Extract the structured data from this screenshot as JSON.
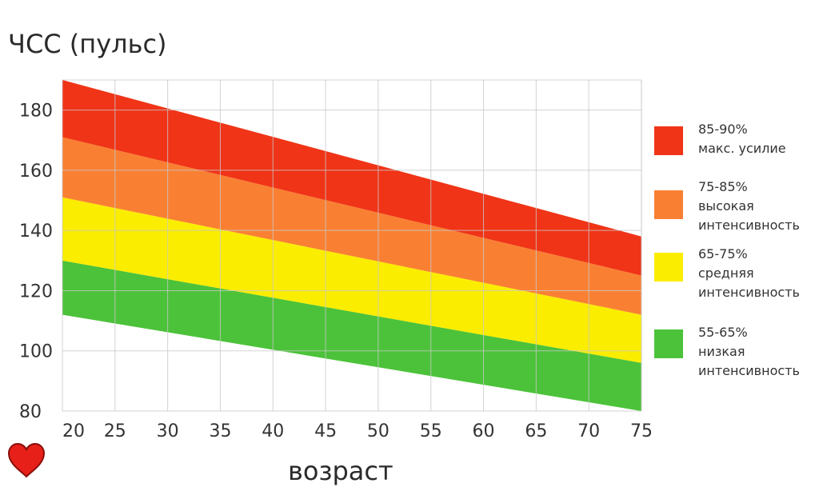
{
  "chart_data": {
    "type": "area",
    "title": "",
    "ylabel": "ЧСС (пульс)",
    "xlabel": "возраст",
    "x_ticks": [
      20,
      25,
      30,
      35,
      40,
      45,
      50,
      55,
      60,
      65,
      70,
      75
    ],
    "y_ticks": [
      80,
      100,
      120,
      140,
      160,
      180
    ],
    "xlim": [
      20,
      75
    ],
    "ylim": [
      80,
      190
    ],
    "grid": true,
    "legend_position": "right",
    "zone_boundaries": [
      {
        "at_x20": 112,
        "at_x75": 80
      },
      {
        "at_x20": 130,
        "at_x75": 96
      },
      {
        "at_x20": 151,
        "at_x75": 112
      },
      {
        "at_x20": 171,
        "at_x75": 125
      },
      {
        "at_x20": 190,
        "at_x75": 138
      }
    ],
    "series": [
      {
        "name": "55-65% низкая интенсивность",
        "lower": 0,
        "upper": 1,
        "color": "#4cc23a"
      },
      {
        "name": "65-75% средняя интенсивность",
        "lower": 1,
        "upper": 2,
        "color": "#fbed00"
      },
      {
        "name": "75-85% высокая интенсивность",
        "lower": 2,
        "upper": 3,
        "color": "#f98033"
      },
      {
        "name": "85-90% макс. усилие",
        "lower": 3,
        "upper": 4,
        "color": "#f03417"
      }
    ]
  },
  "legend": [
    {
      "line1": "85-90%",
      "line2": "макс. усилие",
      "line3": "",
      "color": "#f03417"
    },
    {
      "line1": "75-85%",
      "line2": "высокая",
      "line3": "интенсивность",
      "color": "#f98033"
    },
    {
      "line1": "65-75%",
      "line2": "средняя",
      "line3": "интенсивность",
      "color": "#fbed00"
    },
    {
      "line1": "55-65%",
      "line2": "низкая",
      "line3": "интенсивность",
      "color": "#4cc23a"
    }
  ],
  "heart_icon": {
    "name": "heart-icon",
    "color": "#e8201a"
  }
}
